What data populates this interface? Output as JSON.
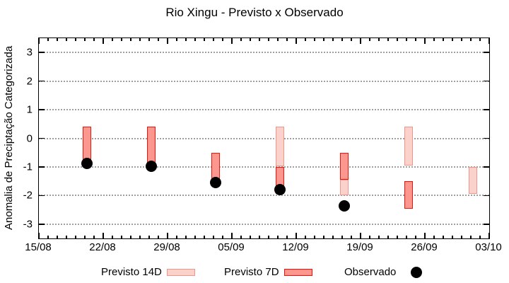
{
  "chart_data": {
    "type": "bar",
    "subtype": "forecast-range-candlesticks",
    "title": "Rio Xingu - Previsto x Observado",
    "ylabel": "Anomalia de Preciptação Categorizada",
    "xlabel": "",
    "ylim": [
      -3.5,
      3.5
    ],
    "y_ticks": [
      3,
      2,
      1,
      0,
      -1,
      -2,
      -3
    ],
    "grid": "horizontal dashed lines at integer y ticks",
    "x_axis": {
      "tick_labels": [
        "15/08",
        "22/08",
        "29/08",
        "05/09",
        "12/09",
        "19/09",
        "26/09",
        "03/10"
      ],
      "range_days": [
        0,
        49
      ],
      "major_tick_every_days": 7,
      "minor_tick_every_days": 1
    },
    "legend": [
      {
        "label": "Previsto 14D",
        "swatch": "light-pink-box"
      },
      {
        "label": "Previsto 7D",
        "swatch": "red-box"
      },
      {
        "label": "Observado",
        "swatch": "black-dot"
      }
    ],
    "groups": [
      {
        "date": "20/08",
        "day": 5.2,
        "bars": [
          {
            "kind": "7d",
            "hi": 0.42,
            "lo": -0.9
          }
        ],
        "observed": -0.88
      },
      {
        "date": "27/08",
        "day": 12.2,
        "bars": [
          {
            "kind": "7d",
            "hi": 0.42,
            "lo": -0.9
          }
        ],
        "observed": -0.97
      },
      {
        "date": "03/09",
        "day": 19.2,
        "bars": [
          {
            "kind": "7d",
            "hi": -0.5,
            "lo": -1.45
          }
        ],
        "observed": -1.55
      },
      {
        "date": "10/09",
        "day": 26.2,
        "bars": [
          {
            "kind": "14d",
            "hi": 0.42,
            "lo": -0.97
          },
          {
            "kind": "7d",
            "hi": -1.0,
            "lo": -1.95
          }
        ],
        "observed": -1.8
      },
      {
        "date": "17/09",
        "day": 33.2,
        "bars": [
          {
            "kind": "7d",
            "hi": -0.5,
            "lo": -1.45
          },
          {
            "kind": "14d",
            "hi": -1.45,
            "lo": -2.0
          }
        ],
        "observed": -2.35
      },
      {
        "date": "24/09",
        "day": 40.2,
        "bars": [
          {
            "kind": "14d",
            "hi": 0.42,
            "lo": -0.95
          },
          {
            "kind": "7d",
            "hi": -1.5,
            "lo": -2.45
          }
        ],
        "observed": null
      },
      {
        "date": "01/10",
        "day": 47.2,
        "bars": [
          {
            "kind": "14d",
            "hi": -1.0,
            "lo": -1.95
          }
        ],
        "observed": null
      }
    ],
    "colors": {
      "previsto_14d_fill": "#fbd2cb",
      "previsto_14d_border": "#f29488",
      "previsto_7d_fill": "#fb978f",
      "previsto_7d_border": "#ee1409",
      "observado": "#000000",
      "grid": "#a0a0a0",
      "frame": "#000000"
    }
  }
}
